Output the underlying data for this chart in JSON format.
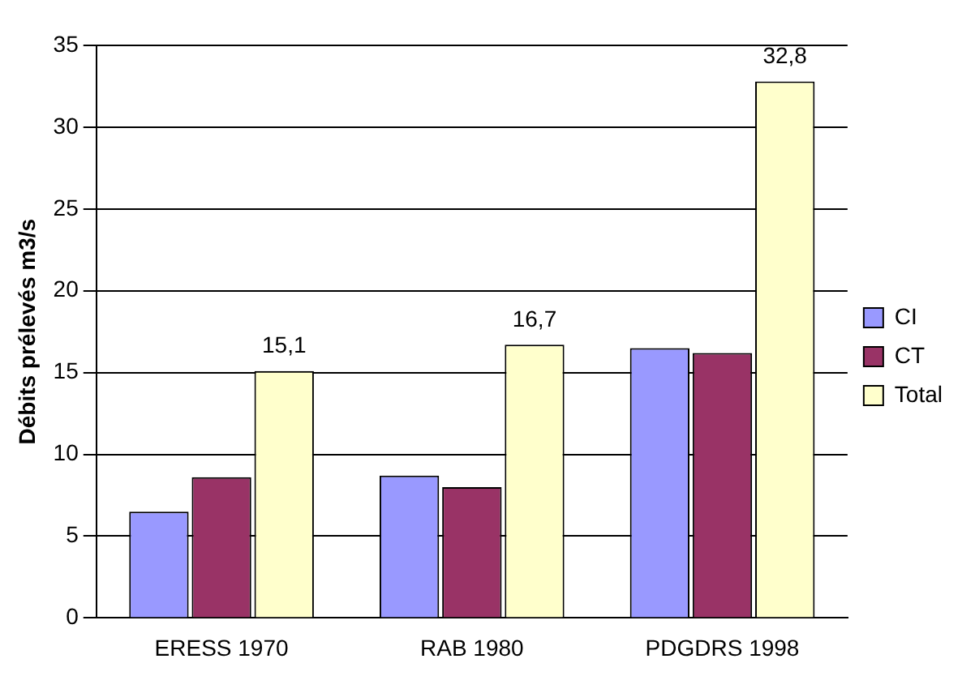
{
  "chart_data": {
    "type": "bar",
    "ylabel": "Débits prélevés m3/s",
    "categories": [
      "ERESS 1970",
      "RAB 1980",
      "PDGDRS 1998"
    ],
    "series": [
      {
        "name": "CI",
        "color": "#9999ff",
        "values": [
          6.5,
          8.7,
          16.5
        ]
      },
      {
        "name": "CT",
        "color": "#993366",
        "values": [
          8.6,
          8.0,
          16.2
        ]
      },
      {
        "name": "Total",
        "color": "#ffffcc",
        "values": [
          15.1,
          16.7,
          32.8
        ],
        "value_labels": [
          "15,1",
          "16,7",
          "32,8"
        ]
      }
    ],
    "ylim": [
      0,
      35
    ],
    "yticks": [
      0,
      5,
      10,
      15,
      20,
      25,
      30,
      35
    ],
    "grid": "y",
    "legend": "right"
  }
}
